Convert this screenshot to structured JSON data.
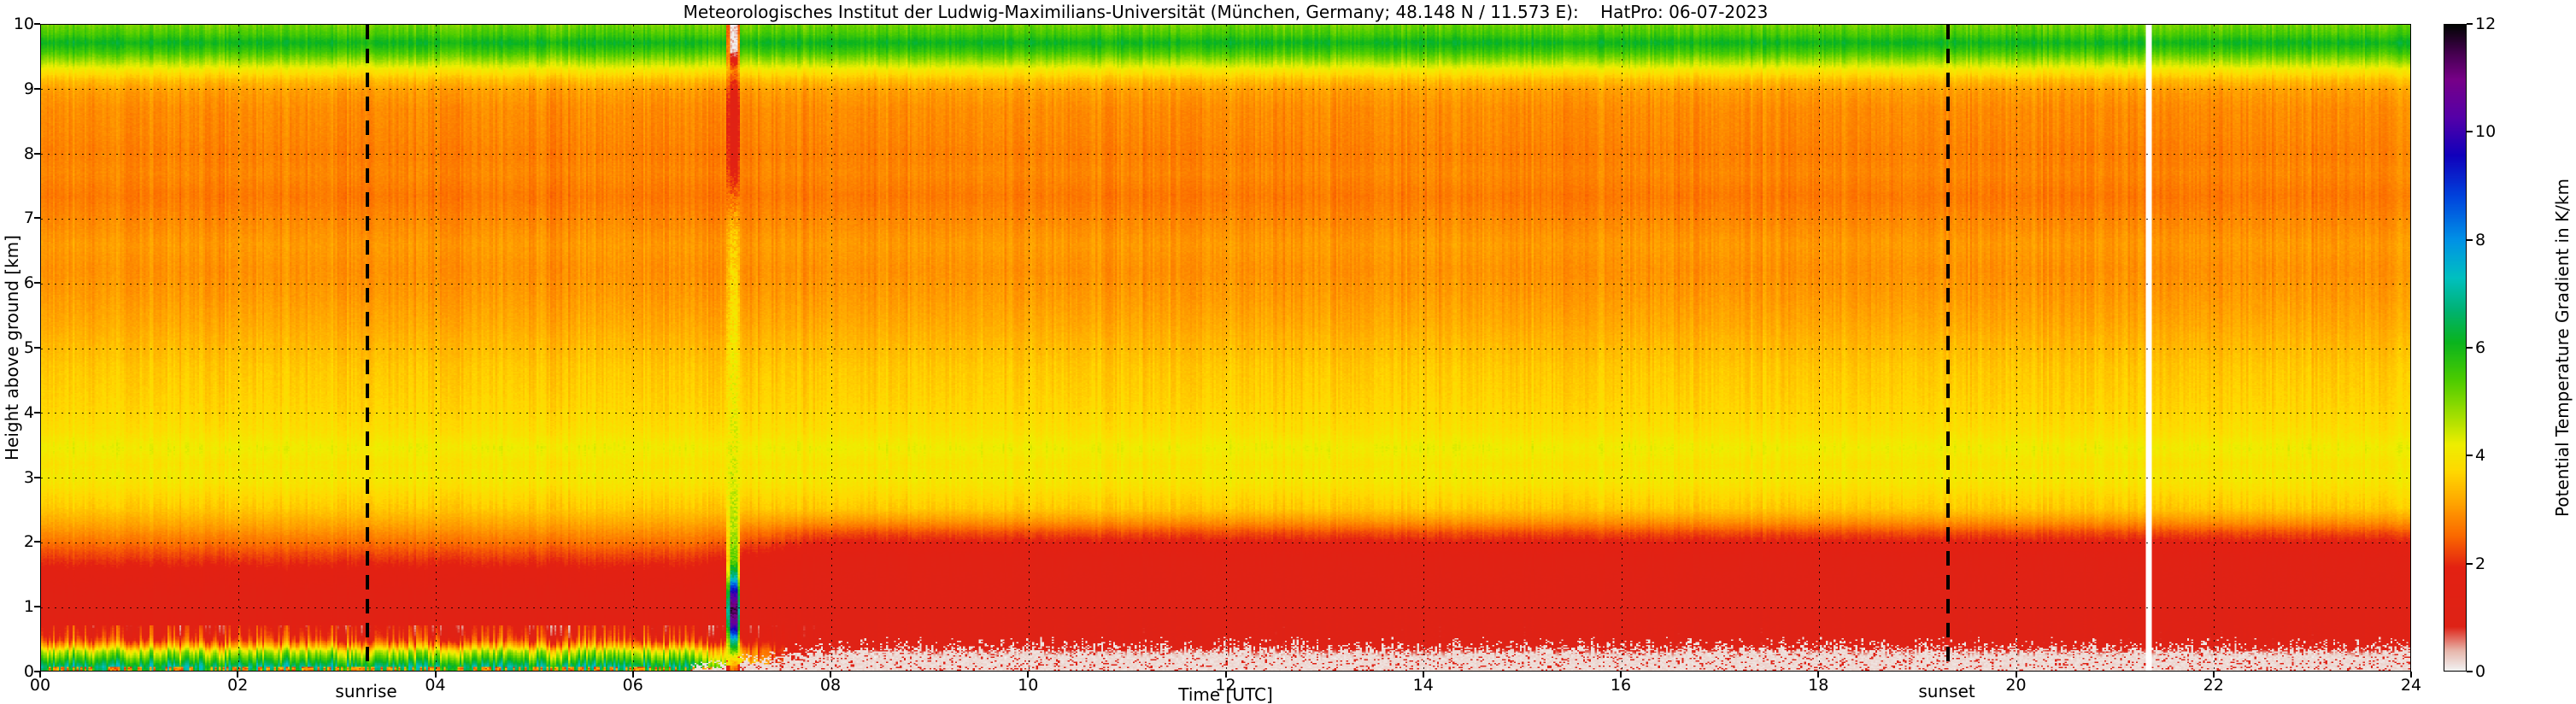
{
  "title": "Meteorologisches Institut der Ludwig-Maximilians-Universität (München, Germany; 48.148 N / 11.573 E):    HatPro: 06-07-2023",
  "chart_data": {
    "type": "heatmap",
    "xlabel": "Time [UTC]",
    "ylabel": "Height above ground [km]",
    "colorbar_label": "Potential Temperature Gradient in K/km",
    "x_range": [
      0,
      24
    ],
    "x_tick_step": 2,
    "x_tick_labels": [
      "00",
      "02",
      "04",
      "06",
      "08",
      "10",
      "12",
      "14",
      "16",
      "18",
      "20",
      "22",
      "24"
    ],
    "y_range": [
      0,
      10
    ],
    "y_tick_labels": [
      "0",
      "1",
      "2",
      "3",
      "4",
      "5",
      "6",
      "7",
      "8",
      "9",
      "10"
    ],
    "colorbar_range": [
      0,
      12
    ],
    "colorbar_tick_values": [
      0,
      2,
      4,
      6,
      8,
      10,
      12
    ],
    "colorbar_tick_labels": [
      "0",
      "2",
      "4",
      "6",
      "8",
      "10",
      "12"
    ],
    "grid": true,
    "annotations": [
      {
        "label": "sunrise",
        "x": 3.3,
        "style": "dashed-vline"
      },
      {
        "label": "sunset",
        "x": 19.3,
        "style": "dashed-vline"
      }
    ],
    "events": [
      {
        "type": "anomaly-column",
        "x": 7.0,
        "description": "narrow disturbed profile column (high gradient near surface, low aloft)"
      },
      {
        "type": "missing-data-column",
        "x": 21.36,
        "color": "#ffffff"
      }
    ],
    "day_transition_utc": [
      6.4,
      8.2
    ],
    "colormap": [
      [
        0.0,
        "#f1f0ef"
      ],
      [
        0.35,
        "#e7b7ac"
      ],
      [
        0.8,
        "#de2216"
      ],
      [
        1.9,
        "#e32112"
      ],
      [
        2.5,
        "#fb6a00"
      ],
      [
        3.1,
        "#ffa300"
      ],
      [
        3.7,
        "#ffd800"
      ],
      [
        4.2,
        "#eeee00"
      ],
      [
        4.7,
        "#a8e000"
      ],
      [
        5.4,
        "#4ccc00"
      ],
      [
        6.1,
        "#0ab41e"
      ],
      [
        6.7,
        "#00b273"
      ],
      [
        7.3,
        "#00c0c0"
      ],
      [
        8.0,
        "#0092e6"
      ],
      [
        8.8,
        "#0044dd"
      ],
      [
        9.6,
        "#1100bb"
      ],
      [
        10.3,
        "#5500a8"
      ],
      [
        11.0,
        "#770088"
      ],
      [
        11.5,
        "#44004e"
      ],
      [
        12.0,
        "#050505"
      ]
    ],
    "profiles": {
      "upper": [
        [
          2.5,
          3.5
        ],
        [
          2.7,
          3.7
        ],
        [
          3.0,
          4.05
        ],
        [
          3.2,
          3.9
        ],
        [
          3.45,
          4.15
        ],
        [
          3.7,
          3.85
        ],
        [
          4.0,
          3.7
        ],
        [
          4.3,
          3.6
        ],
        [
          4.7,
          3.5
        ],
        [
          5.0,
          3.35
        ],
        [
          5.4,
          3.15
        ],
        [
          5.8,
          3.0
        ],
        [
          6.2,
          2.9
        ],
        [
          6.6,
          3.0
        ],
        [
          7.0,
          2.8
        ],
        [
          7.35,
          2.65
        ],
        [
          7.7,
          2.8
        ],
        [
          8.0,
          2.72
        ],
        [
          8.35,
          2.8
        ],
        [
          8.7,
          2.85
        ],
        [
          9.0,
          3.05
        ],
        [
          9.15,
          3.4
        ],
        [
          9.3,
          4.0
        ],
        [
          9.45,
          4.8
        ],
        [
          9.6,
          5.6
        ],
        [
          9.72,
          6.1
        ],
        [
          9.85,
          5.5
        ],
        [
          10,
          5.1
        ]
      ],
      "night_lower": [
        [
          0,
          6.2
        ],
        [
          0.06,
          6.7
        ],
        [
          0.14,
          5.9
        ],
        [
          0.22,
          5.1
        ],
        [
          0.3,
          4.4
        ],
        [
          0.38,
          3.2
        ],
        [
          0.46,
          2.2
        ],
        [
          0.55,
          1.75
        ],
        [
          0.7,
          1.45
        ],
        [
          0.9,
          1.3
        ],
        [
          1.1,
          1.3
        ],
        [
          1.3,
          1.45
        ],
        [
          1.55,
          1.75
        ],
        [
          1.8,
          2.2
        ],
        [
          2.0,
          2.6
        ],
        [
          2.2,
          3.0
        ],
        [
          2.35,
          3.25
        ],
        [
          2.5,
          3.5
        ]
      ],
      "day_lower": [
        [
          0,
          0.08
        ],
        [
          0.2,
          0.09
        ],
        [
          0.28,
          0.5
        ],
        [
          0.34,
          0.95
        ],
        [
          0.5,
          1.0
        ],
        [
          0.8,
          1.0
        ],
        [
          1.1,
          1.05
        ],
        [
          1.4,
          1.1
        ],
        [
          1.7,
          1.3
        ],
        [
          1.95,
          1.7
        ],
        [
          2.15,
          2.3
        ],
        [
          2.3,
          2.9
        ],
        [
          2.4,
          3.2
        ],
        [
          2.5,
          3.5
        ]
      ],
      "anomaly": [
        [
          0,
          2.5
        ],
        [
          0.2,
          4.0
        ],
        [
          0.45,
          7.0
        ],
        [
          0.7,
          10.5
        ],
        [
          0.95,
          11.6
        ],
        [
          1.2,
          10.0
        ],
        [
          1.45,
          7.0
        ],
        [
          1.7,
          5.2
        ],
        [
          2.2,
          4.6
        ],
        [
          3.0,
          4.3
        ],
        [
          4.0,
          4.15
        ],
        [
          5.0,
          4.0
        ],
        [
          6.0,
          3.8
        ],
        [
          6.8,
          3.5
        ],
        [
          7.3,
          2.6
        ],
        [
          7.8,
          1.6
        ],
        [
          8.3,
          1.2
        ],
        [
          8.8,
          1.3
        ],
        [
          9.1,
          1.9
        ],
        [
          9.3,
          2.8
        ],
        [
          9.5,
          1.0
        ],
        [
          9.62,
          0.15
        ],
        [
          10,
          0.12
        ]
      ]
    }
  }
}
